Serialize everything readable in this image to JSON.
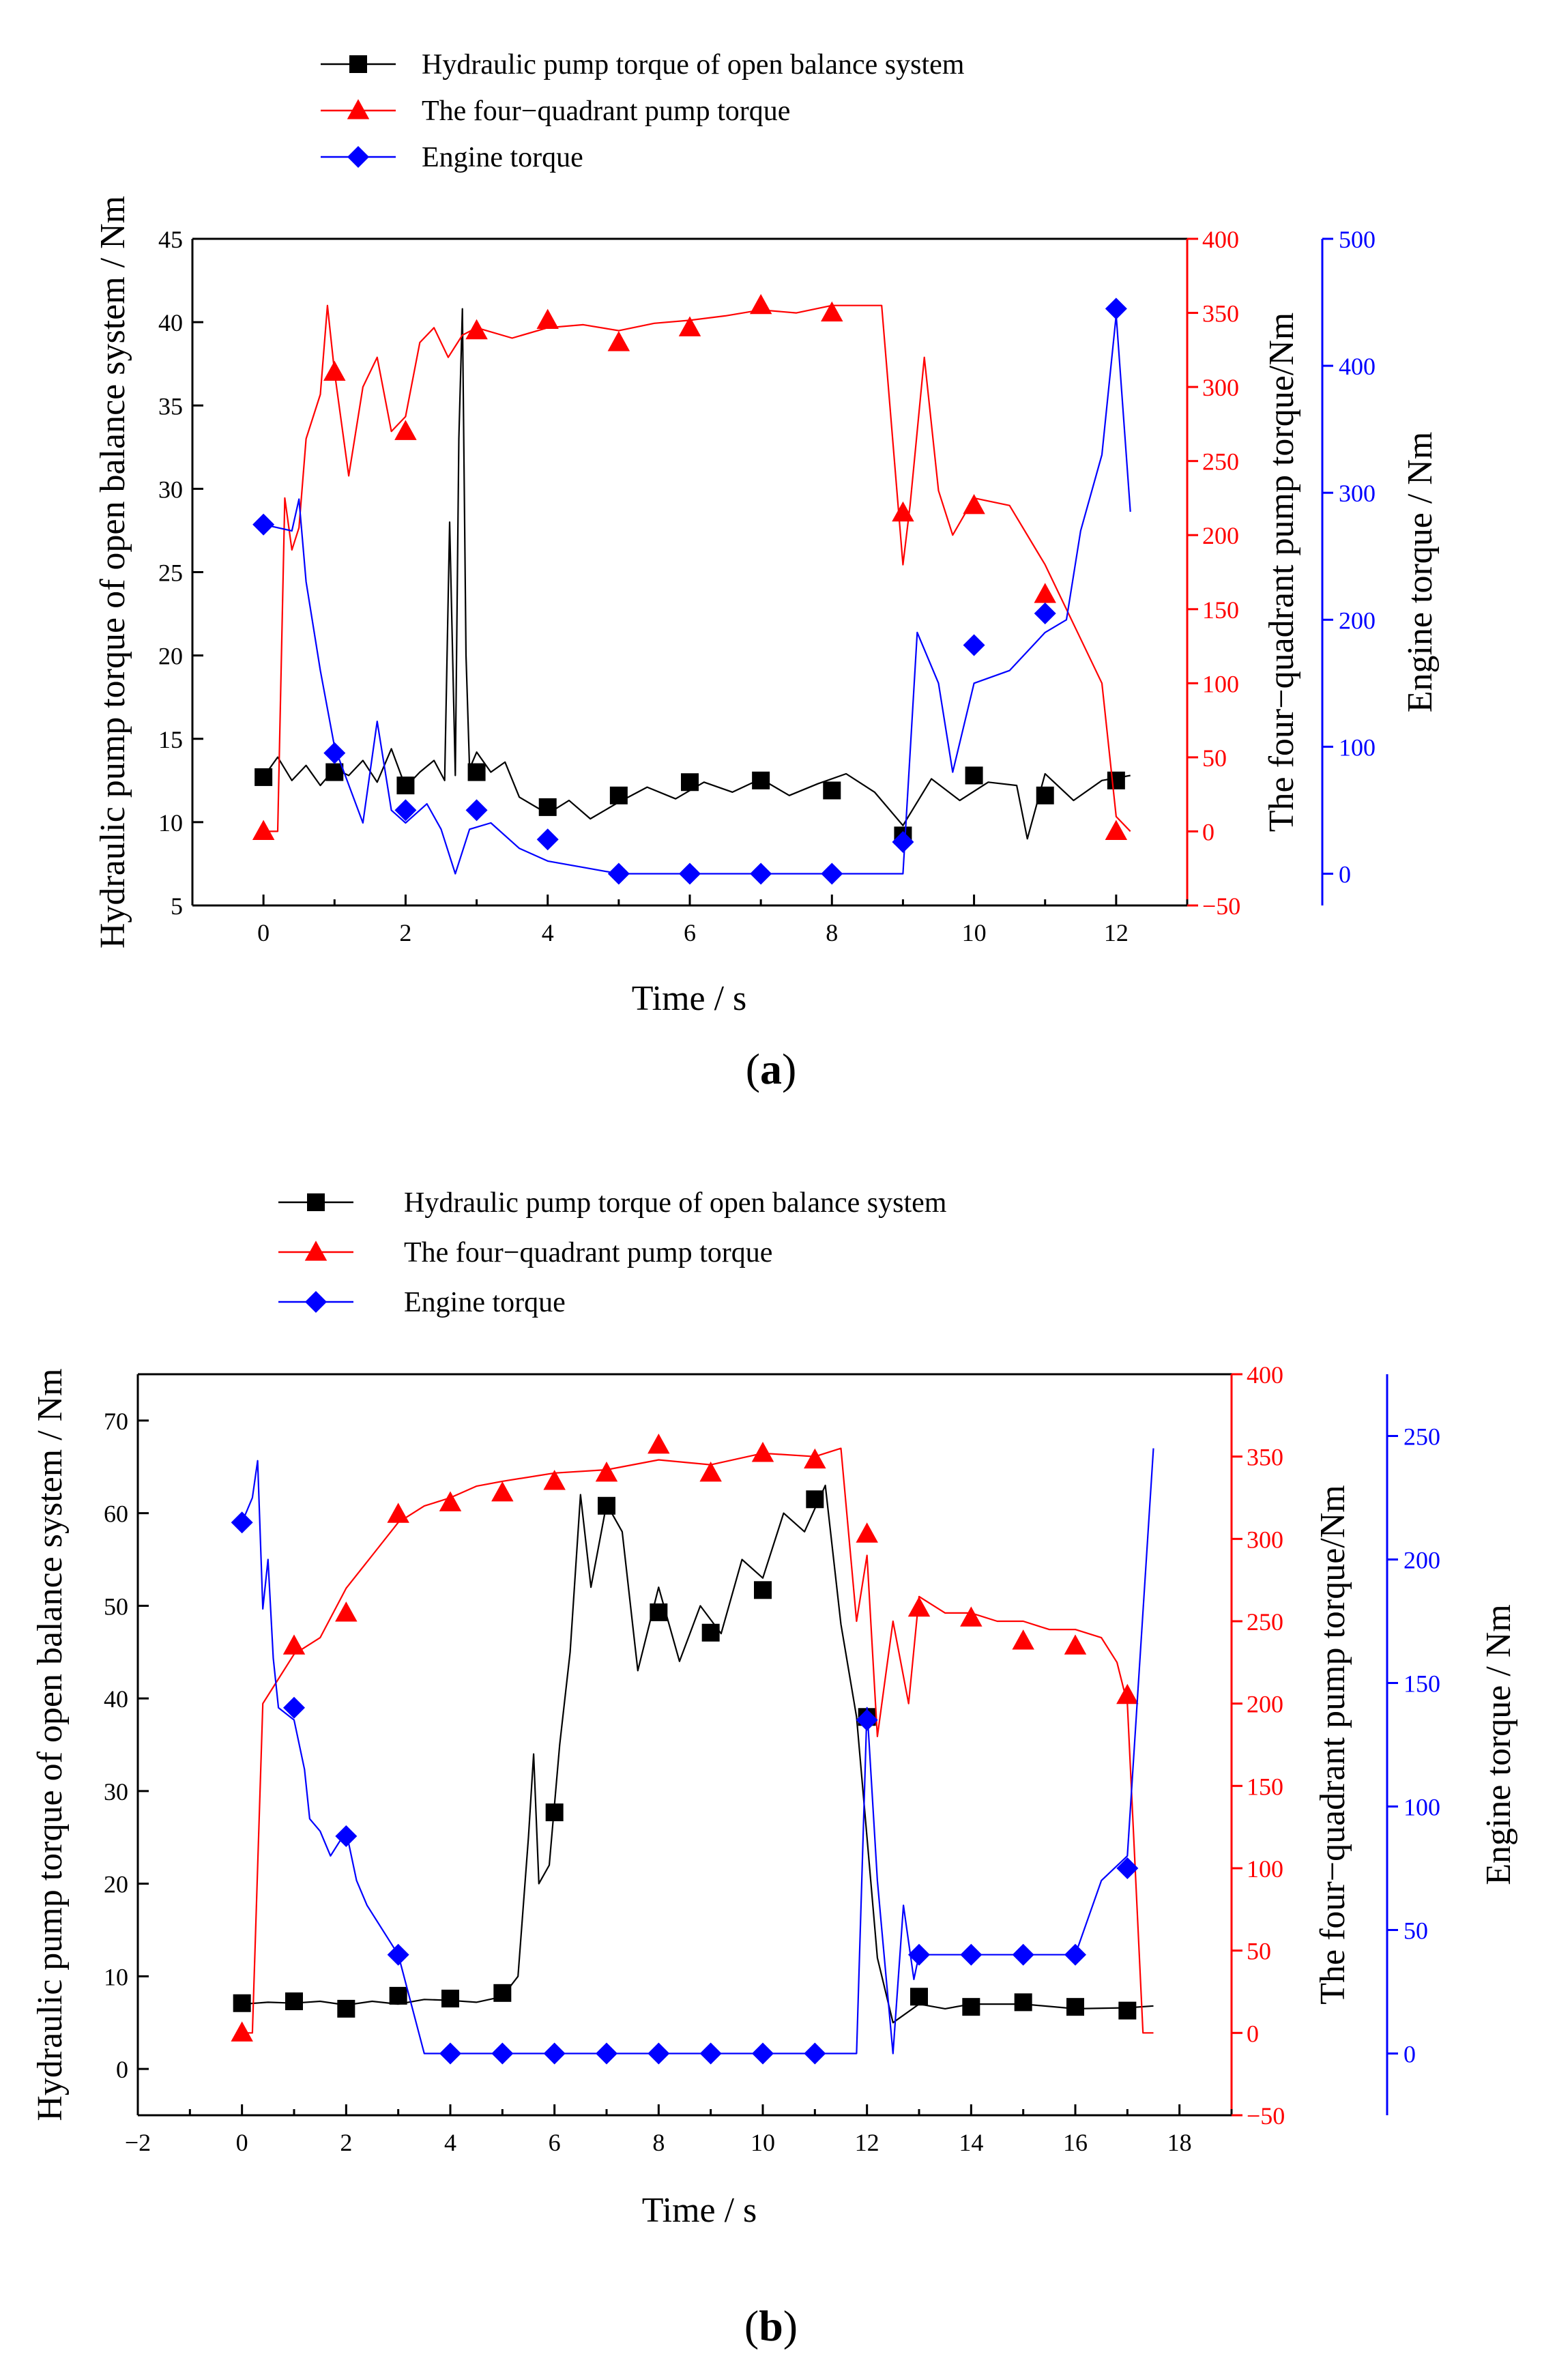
{
  "figure": {
    "panels": [
      {
        "panel_label_letter": "a",
        "legend": [
          {
            "label": "Hydraulic pump torque of open balance system",
            "color": "#000000",
            "marker": "square"
          },
          {
            "label": "The four−quadrant pump torque",
            "color": "#ff0000",
            "marker": "triangle"
          },
          {
            "label": "Engine torque",
            "color": "#0000ff",
            "marker": "diamond"
          }
        ],
        "xlabel": "Time / s",
        "ylabel_left": "Hydraulic pump torque of open balance system  / Nm",
        "ylabel_right1": "The four−quadrant pump torque/Nm",
        "ylabel_right2": "Engine torque / Nm"
      },
      {
        "panel_label_letter": "b",
        "legend": [
          {
            "label": "Hydraulic pump torque of open balance system",
            "color": "#000000",
            "marker": "square"
          },
          {
            "label": "The four−quadrant pump torque",
            "color": "#ff0000",
            "marker": "triangle"
          },
          {
            "label": "Engine torque",
            "color": "#0000ff",
            "marker": "diamond"
          }
        ],
        "xlabel": "Time / s",
        "ylabel_left": "Hydraulic pump torque of open balance system  / Nm",
        "ylabel_right1": "The four−quadrant pump torque/Nm",
        "ylabel_right2": "Engine torque / Nm"
      }
    ]
  },
  "chart_data": [
    {
      "type": "line",
      "panel": "a",
      "x_range": [
        -1,
        13
      ],
      "x_ticks": [
        0,
        2,
        4,
        6,
        8,
        10,
        12
      ],
      "y_left": {
        "range": [
          5,
          45
        ],
        "ticks": [
          5,
          10,
          15,
          20,
          25,
          30,
          35,
          40,
          45
        ],
        "color": "#000000"
      },
      "y_right1": {
        "range": [
          -50,
          400
        ],
        "ticks": [
          -50,
          0,
          50,
          100,
          150,
          200,
          250,
          300,
          350,
          400
        ],
        "color": "#ff0000"
      },
      "y_right2": {
        "range": [
          -25,
          500
        ],
        "ticks": [
          0,
          100,
          200,
          300,
          400,
          500
        ],
        "color": "#0000ff"
      },
      "series": [
        {
          "name": "Hydraulic pump torque of open balance system",
          "axis": "left",
          "color": "#000000",
          "marker": "square",
          "x": [
            0,
            0.2,
            0.4,
            0.6,
            0.8,
            1.0,
            1.2,
            1.4,
            1.6,
            1.8,
            2.0,
            2.2,
            2.4,
            2.55,
            2.62,
            2.7,
            2.75,
            2.8,
            2.85,
            2.9,
            3.0,
            3.2,
            3.4,
            3.6,
            3.8,
            4.0,
            4.3,
            4.6,
            5.0,
            5.4,
            5.8,
            6.2,
            6.6,
            7.0,
            7.4,
            7.8,
            8.2,
            8.6,
            9.0,
            9.4,
            9.8,
            10.2,
            10.6,
            10.75,
            11.0,
            11.4,
            11.8,
            12.2
          ],
          "y": [
            12.7,
            13.9,
            12.5,
            13.4,
            12.2,
            13.2,
            12.8,
            13.7,
            12.4,
            14.4,
            12.1,
            13.0,
            13.7,
            12.5,
            28.0,
            12.8,
            33.0,
            40.8,
            20.0,
            13.2,
            14.2,
            13.0,
            13.6,
            11.5,
            11.0,
            10.5,
            11.3,
            10.2,
            11.2,
            12.1,
            11.4,
            12.4,
            11.8,
            12.6,
            11.6,
            12.3,
            12.9,
            11.8,
            9.8,
            12.6,
            11.3,
            12.4,
            12.2,
            9.0,
            12.9,
            11.3,
            12.5,
            12.8
          ],
          "marker_x": [
            0,
            1,
            2,
            3,
            4,
            5,
            6,
            7,
            8,
            9,
            10,
            11,
            12
          ],
          "marker_y": [
            12.7,
            13.0,
            12.2,
            13.0,
            10.9,
            11.6,
            12.4,
            12.5,
            11.9,
            9.2,
            12.8,
            11.6,
            12.5
          ]
        },
        {
          "name": "The four−quadrant pump torque",
          "axis": "right1",
          "color": "#ff0000",
          "marker": "triangle",
          "x": [
            0,
            0.2,
            0.3,
            0.4,
            0.5,
            0.6,
            0.8,
            0.9,
            1.0,
            1.2,
            1.4,
            1.6,
            1.8,
            2.0,
            2.2,
            2.4,
            2.6,
            2.8,
            3.0,
            3.5,
            4.0,
            4.5,
            5.0,
            5.5,
            6.0,
            6.5,
            7.0,
            7.5,
            8.0,
            8.5,
            8.7,
            9.0,
            9.1,
            9.3,
            9.5,
            9.7,
            10.0,
            10.5,
            11.0,
            11.5,
            11.8,
            12.0,
            12.2
          ],
          "y": [
            0,
            0,
            225,
            190,
            205,
            265,
            295,
            355,
            310,
            240,
            300,
            320,
            270,
            280,
            330,
            340,
            320,
            335,
            340,
            333,
            340,
            342,
            338,
            343,
            345,
            348,
            352,
            350,
            355,
            355,
            355,
            180,
            220,
            320,
            230,
            200,
            225,
            220,
            180,
            130,
            100,
            10,
            0
          ],
          "marker_x": [
            0,
            1,
            2,
            3,
            4,
            5,
            6,
            7,
            8,
            9,
            10,
            11,
            12
          ],
          "marker_y": [
            0,
            310,
            270,
            338,
            345,
            330,
            340,
            355,
            350,
            215,
            220,
            160,
            0
          ]
        },
        {
          "name": "Engine torque",
          "axis": "right2",
          "color": "#0000ff",
          "marker": "diamond",
          "x": [
            0,
            0.4,
            0.5,
            0.6,
            0.8,
            1.0,
            1.2,
            1.4,
            1.6,
            1.8,
            2.0,
            2.3,
            2.5,
            2.7,
            2.9,
            3.2,
            3.6,
            4.0,
            4.5,
            5.0,
            6.0,
            7.0,
            8.0,
            9.0,
            9.2,
            9.5,
            9.7,
            10.0,
            10.5,
            11.0,
            11.3,
            11.5,
            11.8,
            12.0,
            12.2
          ],
          "y": [
            275,
            270,
            295,
            230,
            160,
            100,
            70,
            40,
            120,
            50,
            40,
            55,
            35,
            0,
            35,
            40,
            20,
            10,
            5,
            0,
            0,
            0,
            0,
            0,
            190,
            150,
            80,
            150,
            160,
            190,
            200,
            270,
            330,
            440,
            285
          ],
          "marker_x": [
            0,
            1,
            2,
            3,
            4,
            5,
            6,
            7,
            8,
            9,
            10,
            11,
            12
          ],
          "marker_y": [
            275,
            95,
            50,
            50,
            27,
            0,
            0,
            0,
            0,
            25,
            180,
            205,
            445
          ]
        }
      ]
    },
    {
      "type": "line",
      "panel": "b",
      "x_range": [
        -2,
        19
      ],
      "x_ticks": [
        -2,
        0,
        2,
        4,
        6,
        8,
        10,
        12,
        14,
        16,
        18
      ],
      "y_left": {
        "range": [
          -5,
          75
        ],
        "ticks": [
          0,
          10,
          20,
          30,
          40,
          50,
          60,
          70
        ],
        "color": "#000000"
      },
      "y_right1": {
        "range": [
          -50,
          400
        ],
        "ticks": [
          -50,
          0,
          50,
          100,
          150,
          200,
          250,
          300,
          350,
          400
        ],
        "color": "#ff0000"
      },
      "y_right2": {
        "range": [
          -25,
          275
        ],
        "ticks": [
          0,
          50,
          100,
          150,
          200,
          250
        ],
        "color": "#0000ff"
      },
      "series": [
        {
          "name": "Hydraulic pump torque of open balance system",
          "axis": "left",
          "color": "#000000",
          "marker": "square",
          "x": [
            0,
            0.5,
            1,
            1.5,
            2,
            2.5,
            3,
            3.5,
            4,
            4.5,
            5,
            5.3,
            5.5,
            5.6,
            5.7,
            5.9,
            6.1,
            6.3,
            6.5,
            6.7,
            7.0,
            7.3,
            7.6,
            8.0,
            8.4,
            8.8,
            9.2,
            9.6,
            10.0,
            10.4,
            10.8,
            11.2,
            11.5,
            11.8,
            12.0,
            12.2,
            12.5,
            13,
            13.5,
            14,
            15,
            16,
            17,
            17.5
          ],
          "y": [
            7,
            7.2,
            7.1,
            7.3,
            6.9,
            7.3,
            7.0,
            7.5,
            7.4,
            7.2,
            7.8,
            10,
            25,
            34,
            20,
            22,
            35,
            45,
            62,
            52,
            61,
            58,
            43,
            52,
            44,
            50,
            47,
            55,
            53,
            60,
            58,
            63,
            48,
            38,
            25,
            12,
            5,
            7,
            6.5,
            7,
            7,
            6.5,
            6.6,
            6.8
          ],
          "marker_x": [
            0,
            1,
            2,
            3,
            4,
            5,
            6,
            7,
            8,
            9,
            10,
            11,
            12,
            13,
            14,
            15,
            16,
            17
          ],
          "marker_y": [
            7.1,
            7.3,
            6.5,
            7.9,
            7.6,
            8.2,
            27.7,
            60.8,
            49.3,
            47.1,
            51.7,
            61.5,
            38.0,
            7.8,
            6.7,
            7.2,
            6.7,
            6.3
          ]
        },
        {
          "name": "The four−quadrant pump torque",
          "axis": "right1",
          "color": "#ff0000",
          "marker": "triangle",
          "x": [
            0,
            0.2,
            0.4,
            0.6,
            1.0,
            1.5,
            2,
            2.5,
            3,
            3.5,
            4,
            4.5,
            5,
            6,
            7,
            8,
            9,
            10,
            11,
            11.5,
            11.8,
            12.0,
            12.2,
            12.5,
            12.8,
            13,
            13.5,
            14,
            14.5,
            15,
            15.5,
            16,
            16.5,
            16.8,
            17.0,
            17.3,
            17.5
          ],
          "y": [
            0,
            0,
            200,
            210,
            230,
            240,
            270,
            290,
            310,
            320,
            325,
            332,
            335,
            340,
            342,
            348,
            345,
            352,
            350,
            355,
            250,
            290,
            180,
            250,
            200,
            265,
            255,
            255,
            250,
            250,
            245,
            245,
            240,
            225,
            200,
            0,
            0
          ],
          "marker_x": [
            0,
            1,
            2,
            3,
            4,
            5,
            6,
            7,
            8,
            9,
            10,
            11,
            12,
            13,
            14,
            15,
            16,
            17
          ],
          "marker_y": [
            0,
            235,
            255,
            315,
            322,
            328,
            335,
            340,
            357,
            340,
            352,
            348,
            303,
            258,
            252,
            238,
            235,
            205
          ]
        },
        {
          "name": "Engine torque",
          "axis": "right2",
          "color": "#0000ff",
          "marker": "diamond",
          "x": [
            0,
            0.2,
            0.3,
            0.4,
            0.5,
            0.6,
            0.7,
            1.0,
            1.2,
            1.3,
            1.5,
            1.7,
            2.0,
            2.2,
            2.4,
            3.0,
            3.5,
            4.0,
            5,
            6,
            7,
            8,
            9,
            10,
            11,
            11.8,
            12.0,
            12.2,
            12.5,
            12.7,
            12.9,
            13,
            14,
            15,
            16,
            16.5,
            17.0,
            17.5
          ],
          "y": [
            215,
            225,
            240,
            180,
            200,
            160,
            140,
            135,
            115,
            95,
            90,
            80,
            90,
            70,
            60,
            40,
            0,
            0,
            0,
            0,
            0,
            0,
            0,
            0,
            0,
            0,
            140,
            70,
            0,
            60,
            30,
            40,
            40,
            40,
            40,
            70,
            80,
            245
          ],
          "marker_x": [
            0,
            1,
            2,
            3,
            4,
            5,
            6,
            7,
            8,
            9,
            10,
            11,
            12,
            13,
            14,
            15,
            16,
            17
          ],
          "marker_y": [
            215,
            140,
            88,
            40,
            0,
            0,
            0,
            0,
            0,
            0,
            0,
            0,
            135,
            40,
            40,
            40,
            40,
            75
          ]
        }
      ]
    }
  ]
}
